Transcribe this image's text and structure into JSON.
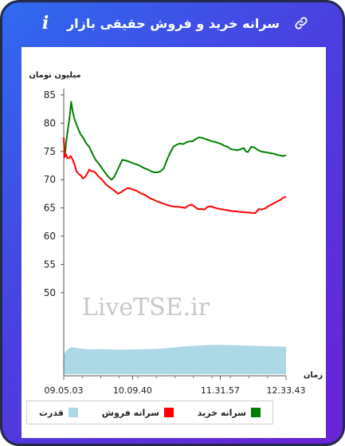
{
  "header": {
    "title": "سرانه خرید و فروش حقیقی بازار",
    "info_label": "i"
  },
  "colors": {
    "buy": "#008000",
    "sell": "#ff0000",
    "power": "#add8e6",
    "header_gradient": [
      "#2e6bf0",
      "#6b22d6"
    ]
  },
  "icons": {
    "info": "info-icon",
    "link": "link-icon"
  },
  "chart_data": {
    "type": "line",
    "ylabel": "میلیون تومان",
    "xlabel": "زمان",
    "watermark": "LiveTSE.ir",
    "ylim": [
      45,
      85
    ],
    "yticks": [
      50,
      55,
      60,
      65,
      70,
      75,
      80,
      85
    ],
    "x_ticks": [
      "09.05.03",
      "10.09.40",
      "11.31.57",
      "12.33.43"
    ],
    "x_tick_minutes": [
      545.05,
      609.67,
      691.95,
      753.72
    ],
    "x_range_minutes": [
      545.05,
      753.72
    ],
    "grid": false,
    "legend_position": "bottom",
    "series": [
      {
        "name": "سرانه خرید",
        "color": "#008000",
        "x": [
          545.05,
          546.0,
          547.2,
          549.0,
          550.5,
          552.0,
          553.5,
          555.0,
          557.0,
          559.0,
          561.0,
          563.0,
          566.0,
          569.0,
          572.0,
          575.0,
          578.0,
          581.0,
          584.0,
          587.0,
          590.0,
          592.5,
          595.0,
          597.5,
          600.0,
          603.0,
          606.0,
          609.0,
          612.0,
          615.0,
          618.0,
          621.0,
          624.0,
          627.0,
          630.0,
          633.0,
          636.0,
          639.0,
          642.0,
          645.0,
          648.0,
          651.0,
          654.0,
          657.0,
          660.0,
          663.0,
          666.0,
          669.0,
          672.0,
          675.0,
          678.0,
          681.0,
          684.0,
          687.0,
          690.0,
          693.0,
          696.0,
          699.0,
          702.0,
          705.0,
          708.0,
          711.0,
          714.0,
          716.0,
          718.0,
          721.0,
          724.0,
          727.0,
          730.0,
          733.0,
          736.0,
          739.0,
          742.0,
          745.0,
          748.0,
          750.0,
          753.72
        ],
        "values": [
          77.0,
          74.0,
          76.5,
          79.0,
          81.0,
          83.8,
          82.0,
          80.8,
          79.8,
          78.8,
          78.0,
          77.5,
          76.5,
          75.8,
          74.6,
          73.5,
          72.8,
          72.0,
          71.2,
          70.5,
          70.0,
          70.5,
          71.5,
          72.5,
          73.5,
          73.4,
          73.2,
          73.0,
          72.8,
          72.6,
          72.3,
          72.0,
          71.8,
          71.5,
          71.3,
          71.3,
          71.5,
          72.0,
          73.5,
          74.8,
          75.8,
          76.2,
          76.4,
          76.3,
          76.6,
          76.8,
          76.8,
          77.2,
          77.5,
          77.4,
          77.2,
          77.0,
          76.8,
          76.7,
          76.5,
          76.3,
          76.0,
          75.8,
          75.4,
          75.3,
          75.2,
          75.4,
          75.6,
          75.0,
          74.9,
          75.8,
          75.7,
          75.3,
          75.0,
          74.9,
          74.8,
          74.7,
          74.6,
          74.4,
          74.3,
          74.2,
          74.3
        ]
      },
      {
        "name": "سرانه فروش",
        "color": "#ff0000",
        "x": [
          545.05,
          546.0,
          547.2,
          548.5,
          550.0,
          551.5,
          553.0,
          555.0,
          557.0,
          559.0,
          561.0,
          563.0,
          565.0,
          567.0,
          569.0,
          571.0,
          573.0,
          575.0,
          578.0,
          581.0,
          584.0,
          587.0,
          590.0,
          593.0,
          596.0,
          599.0,
          602.0,
          605.0,
          608.0,
          611.0,
          614.0,
          617.0,
          620.0,
          623.0,
          626.0,
          629.0,
          632.0,
          635.0,
          638.0,
          641.0,
          644.0,
          647.0,
          650.0,
          653.0,
          656.0,
          659.0,
          662.0,
          665.0,
          668.0,
          671.0,
          674.0,
          677.0,
          680.0,
          683.0,
          686.0,
          689.0,
          692.0,
          695.0,
          698.0,
          701.0,
          704.0,
          707.0,
          710.0,
          713.0,
          716.0,
          719.0,
          722.0,
          725.0,
          728.0,
          731.0,
          734.0,
          737.0,
          740.0,
          743.0,
          746.0,
          749.0,
          751.0,
          753.72
        ],
        "values": [
          77.5,
          74.0,
          74.5,
          73.8,
          73.8,
          74.2,
          73.7,
          72.8,
          71.5,
          71.0,
          70.8,
          70.2,
          70.5,
          71.0,
          71.8,
          71.5,
          71.5,
          71.2,
          70.5,
          70.0,
          69.3,
          68.8,
          68.4,
          68.0,
          67.5,
          67.8,
          68.2,
          68.5,
          68.4,
          68.2,
          68.0,
          67.6,
          67.4,
          67.1,
          66.7,
          66.5,
          66.2,
          66.0,
          65.8,
          65.6,
          65.4,
          65.3,
          65.2,
          65.2,
          65.1,
          65.0,
          65.4,
          65.6,
          65.2,
          64.8,
          64.8,
          64.7,
          65.2,
          65.3,
          65.1,
          64.9,
          64.8,
          64.7,
          64.6,
          64.5,
          64.4,
          64.4,
          64.3,
          64.3,
          64.2,
          64.2,
          64.1,
          64.1,
          64.8,
          64.7,
          64.9,
          65.3,
          65.6,
          65.9,
          66.2,
          66.5,
          66.8,
          67.0
        ]
      },
      {
        "name": "قدرت",
        "color": "#add8e6",
        "type": "area",
        "x": [
          545.05,
          547.0,
          549.0,
          552.0,
          556.0,
          560.0,
          570.0,
          580.0,
          590.0,
          600.0,
          610.0,
          620.0,
          630.0,
          640.0,
          650.0,
          660.0,
          670.0,
          680.0,
          690.0,
          700.0,
          710.0,
          720.0,
          730.0,
          740.0,
          748.0,
          753.72
        ],
        "values": [
          1.25,
          1.45,
          1.6,
          1.72,
          1.7,
          1.65,
          1.58,
          1.6,
          1.58,
          1.57,
          1.58,
          1.6,
          1.62,
          1.65,
          1.72,
          1.78,
          1.82,
          1.86,
          1.87,
          1.86,
          1.84,
          1.82,
          1.8,
          1.78,
          1.76,
          1.75
        ],
        "scale_max": 4.5
      }
    ]
  }
}
